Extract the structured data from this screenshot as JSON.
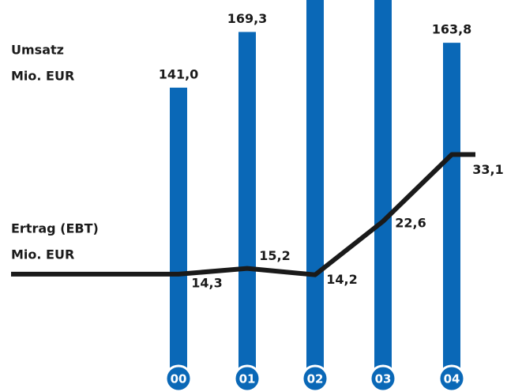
{
  "chart_data": {
    "type": "bar_line",
    "categories": [
      "00",
      "01",
      "02",
      "03",
      "04"
    ],
    "series": [
      {
        "name": "Umsatz",
        "unit": "Mio. EUR",
        "color": "#0a68b7",
        "type": "bar",
        "values": [
          141.0,
          169.3,
          200,
          195,
          163.8
        ],
        "value_labels": [
          "141,0",
          "169,3",
          null,
          null,
          "163,8"
        ]
      },
      {
        "name": "Ertrag (EBT)",
        "unit": "Mio. EUR",
        "color": "#1a1a1a",
        "type": "line",
        "axis": "y2",
        "values": [
          14.3,
          15.2,
          14.2,
          22.6,
          33.1
        ],
        "value_labels": [
          "14,3",
          "15,2",
          "14,2",
          "22,6",
          "33,1"
        ]
      }
    ]
  }
}
